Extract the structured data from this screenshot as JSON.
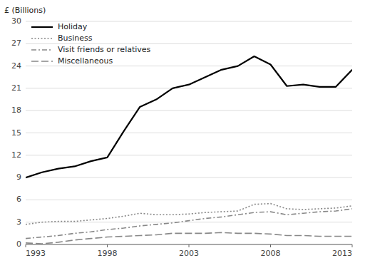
{
  "chart_data": {
    "type": "line",
    "ylabel": "£ (Billions)",
    "x": [
      1993,
      1994,
      1995,
      1996,
      1997,
      1998,
      1999,
      2000,
      2001,
      2002,
      2003,
      2004,
      2005,
      2006,
      2007,
      2008,
      2009,
      2010,
      2011,
      2012,
      2013
    ],
    "series": [
      {
        "name": "Holiday",
        "color": "#000000",
        "line_style": "solid",
        "values": [
          9.0,
          9.7,
          10.2,
          10.5,
          11.2,
          11.7,
          15.2,
          18.5,
          19.5,
          21.0,
          21.5,
          22.5,
          23.5,
          24.0,
          25.3,
          24.2,
          21.3,
          21.5,
          21.2,
          21.2,
          23.5
        ]
      },
      {
        "name": "Business",
        "color": "#888888",
        "line_style": "dotted",
        "values": [
          2.7,
          3.0,
          3.1,
          3.1,
          3.3,
          3.5,
          3.8,
          4.2,
          4.0,
          4.0,
          4.1,
          4.3,
          4.4,
          4.5,
          5.4,
          5.5,
          4.8,
          4.7,
          4.8,
          4.9,
          5.2
        ]
      },
      {
        "name": "Visit friends or relatives",
        "color": "#888888",
        "line_style": "dashdot",
        "values": [
          0.8,
          1.0,
          1.2,
          1.5,
          1.7,
          2.0,
          2.2,
          2.5,
          2.7,
          2.9,
          3.2,
          3.5,
          3.7,
          4.0,
          4.3,
          4.4,
          4.0,
          4.2,
          4.4,
          4.5,
          4.8
        ]
      },
      {
        "name": "Miscellaneous",
        "color": "#888888",
        "line_style": "dashed",
        "values": [
          0.2,
          0.1,
          0.3,
          0.6,
          0.8,
          1.0,
          1.1,
          1.2,
          1.3,
          1.5,
          1.5,
          1.5,
          1.6,
          1.5,
          1.5,
          1.4,
          1.2,
          1.2,
          1.1,
          1.1,
          1.1
        ]
      }
    ],
    "xlim": [
      1993,
      2013
    ],
    "xticks": [
      1993,
      1998,
      2003,
      2008,
      2013
    ],
    "ylim": [
      0,
      30
    ],
    "yticks": [
      0,
      3,
      6,
      9,
      12,
      15,
      18,
      21,
      24,
      27,
      30
    ],
    "grid": true,
    "legend": "upper left"
  }
}
